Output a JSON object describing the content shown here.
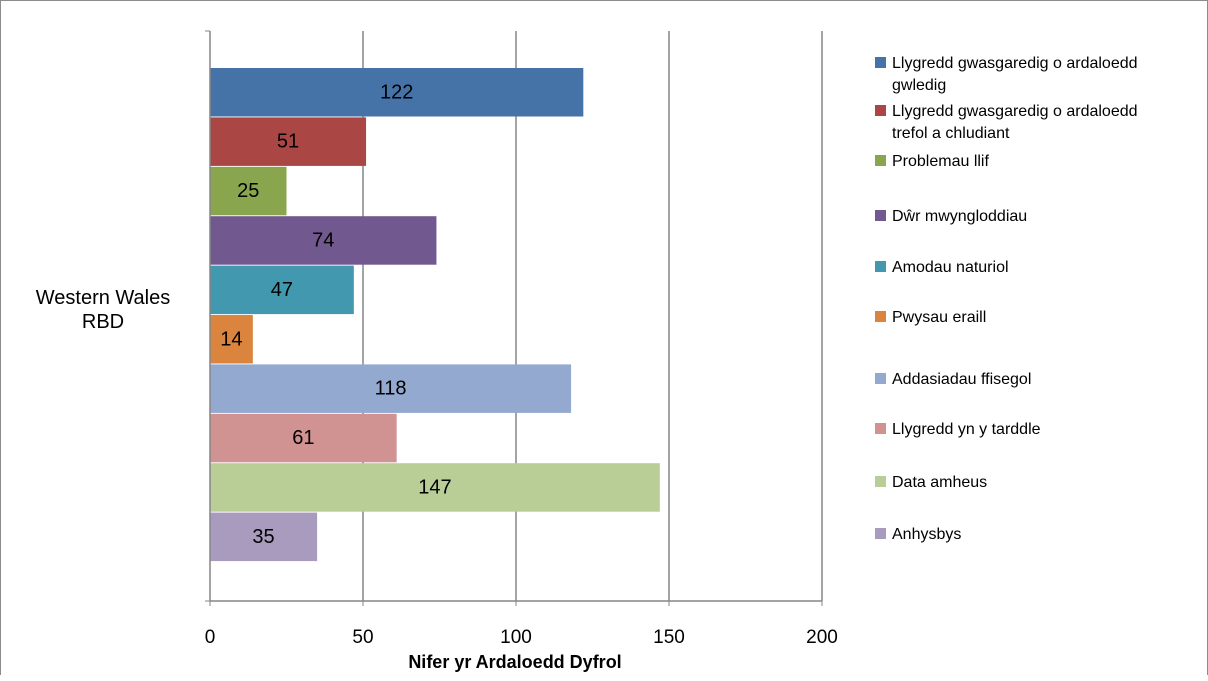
{
  "chart_data": {
    "type": "bar",
    "orientation": "horizontal",
    "categories": [
      "Western Wales RBD"
    ],
    "category_label_lines": [
      "Western Wales",
      "RBD"
    ],
    "xlabel": "Nifer yr Ardaloedd Dyfrol",
    "ylabel": "",
    "xlim": [
      0,
      200
    ],
    "x_ticks": [
      0,
      50,
      100,
      150,
      200
    ],
    "grid": "vertical-major",
    "legend_position": "right",
    "series": [
      {
        "name": "Llygredd gwasgaredig o ardaloedd gwledig",
        "legend_lines": [
          "Llygredd gwasgaredig o ardaloedd",
          "gwledig"
        ],
        "values": [
          122
        ],
        "color": "#4572a7"
      },
      {
        "name": "Llygredd gwasgaredig o ardaloedd trefol a chludiant",
        "legend_lines": [
          "Llygredd gwasgaredig o ardaloedd",
          "trefol a chludiant"
        ],
        "values": [
          51
        ],
        "color": "#aa4643"
      },
      {
        "name": "Problemau llif",
        "legend_lines": [
          "Problemau llif"
        ],
        "values": [
          25
        ],
        "color": "#89a54e"
      },
      {
        "name": "Dŵr mwyngloddiau",
        "legend_lines": [
          "Dŵr mwyngloddiau"
        ],
        "values": [
          74
        ],
        "color": "#71588f"
      },
      {
        "name": "Amodau naturiol",
        "legend_lines": [
          "Amodau naturiol"
        ],
        "values": [
          47
        ],
        "color": "#4198af"
      },
      {
        "name": "Pwysau eraill",
        "legend_lines": [
          "Pwysau eraill"
        ],
        "values": [
          14
        ],
        "color": "#db843d"
      },
      {
        "name": "Addasiadau ffisegol",
        "legend_lines": [
          "Addasiadau ffisegol"
        ],
        "values": [
          118
        ],
        "color": "#93a9cf"
      },
      {
        "name": "Llygredd yn y tarddle",
        "legend_lines": [
          "Llygredd yn y tarddle"
        ],
        "values": [
          61
        ],
        "color": "#d19392"
      },
      {
        "name": "Data amheus",
        "legend_lines": [
          "Data amheus"
        ],
        "values": [
          147
        ],
        "color": "#b9cd96"
      },
      {
        "name": "Anhysbys",
        "legend_lines": [
          "Anhysbys"
        ],
        "values": [
          35
        ],
        "color": "#a99bbd"
      }
    ],
    "data_labels": true
  }
}
